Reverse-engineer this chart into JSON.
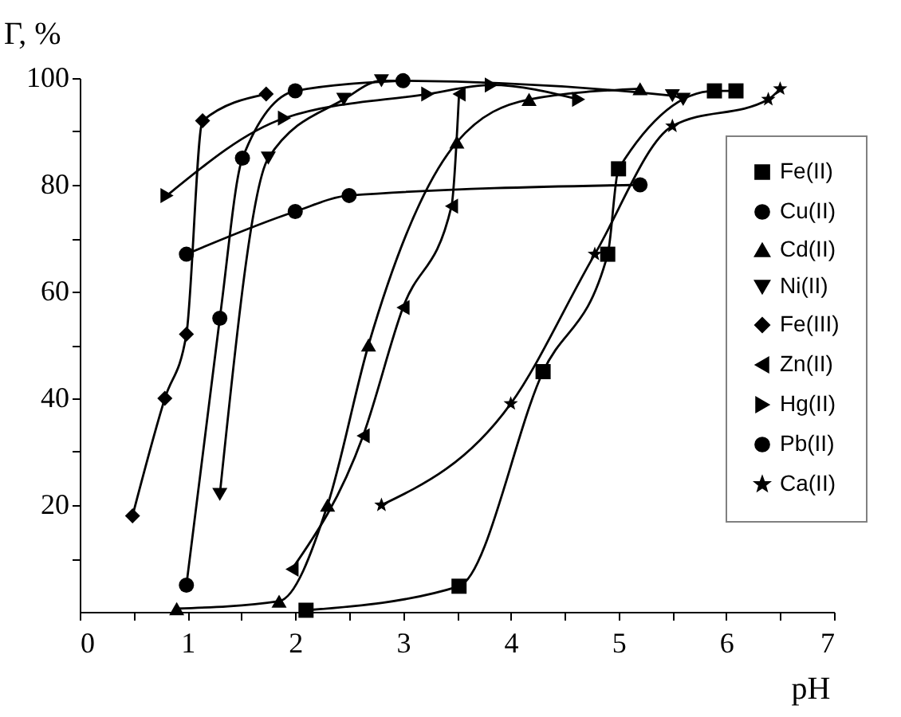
{
  "chart_data": {
    "type": "line",
    "xlabel": "pH",
    "ylabel": "Γ, %",
    "xlim": [
      0,
      7
    ],
    "ylim": [
      0,
      100
    ],
    "xticks": [
      0,
      {
        "value": 0.5,
        "label": null
      },
      1,
      {
        "value": 1.5,
        "label": null
      },
      2,
      {
        "value": 2.5,
        "label": null
      },
      3,
      {
        "value": 3.5,
        "label": null
      },
      4,
      {
        "value": 4.5,
        "label": null
      },
      5,
      {
        "value": 5.5,
        "label": null
      },
      6,
      {
        "value": 6.5,
        "label": null
      },
      7
    ],
    "yticks": [
      {
        "value": 10,
        "label": null
      },
      20,
      {
        "value": 30,
        "label": null
      },
      40,
      {
        "value": 50,
        "label": null
      },
      60,
      {
        "value": 70,
        "label": null
      },
      80,
      {
        "value": 90,
        "label": null
      },
      100
    ],
    "grid": false,
    "legend": "right",
    "series": [
      {
        "name": "Fe(II)",
        "color": "#000000",
        "marker": "square",
        "x": [
          2.1,
          3.52,
          4.3,
          4.9,
          5.0,
          5.89,
          6.09
        ],
        "values": [
          0.3,
          4.8,
          45,
          67,
          83,
          97.6,
          97.6
        ]
      },
      {
        "name": "Cu(II)",
        "color": "#000000",
        "marker": "circle",
        "x": [
          0.99,
          1.3,
          1.51,
          2.0,
          3.0
        ],
        "values": [
          5,
          55,
          85,
          97.6,
          99.5
        ]
      },
      {
        "name": "Cd(II)",
        "color": "#000000",
        "marker": "triangle-up",
        "x": [
          0.9,
          1.85,
          2.3,
          2.68,
          3.5,
          4.17,
          5.2
        ],
        "values": [
          0.6,
          2,
          20,
          50,
          88,
          96,
          98
        ]
      },
      {
        "name": "Ni(II)",
        "color": "#000000",
        "marker": "triangle-down",
        "x": [
          1.3,
          1.75,
          2.45,
          2.8,
          5.5,
          5.6
        ],
        "values": [
          22,
          85,
          96,
          99.5,
          96.7,
          96
        ]
      },
      {
        "name": "Fe(III)",
        "color": "#000000",
        "marker": "diamond",
        "x": [
          0.49,
          0.79,
          0.99,
          1.14,
          1.73
        ],
        "values": [
          18,
          40,
          52,
          92,
          97
        ]
      },
      {
        "name": "Zn(II)",
        "color": "#000000",
        "marker": "triangle-left",
        "x": [
          1.97,
          2.63,
          3.0,
          3.45,
          3.52
        ],
        "values": [
          8,
          33,
          57,
          76,
          97
        ]
      },
      {
        "name": "Hg(II)",
        "color": "#000000",
        "marker": "triangle-right",
        "x": [
          0.81,
          1.9,
          3.23,
          3.82,
          4.63
        ],
        "values": [
          78,
          92.5,
          97,
          98.7,
          96
        ]
      },
      {
        "name": "Pb(II)",
        "color": "#000000",
        "marker": "circle",
        "x": [
          0.99,
          2.0,
          2.5,
          5.2
        ],
        "values": [
          67,
          75,
          78,
          80
        ]
      },
      {
        "name": "Ca(II)",
        "color": "#000000",
        "marker": "star",
        "x": [
          2.8,
          4.0,
          4.78,
          5.5,
          6.39,
          6.5
        ],
        "values": [
          20,
          39,
          67,
          91,
          96,
          98
        ]
      }
    ]
  }
}
